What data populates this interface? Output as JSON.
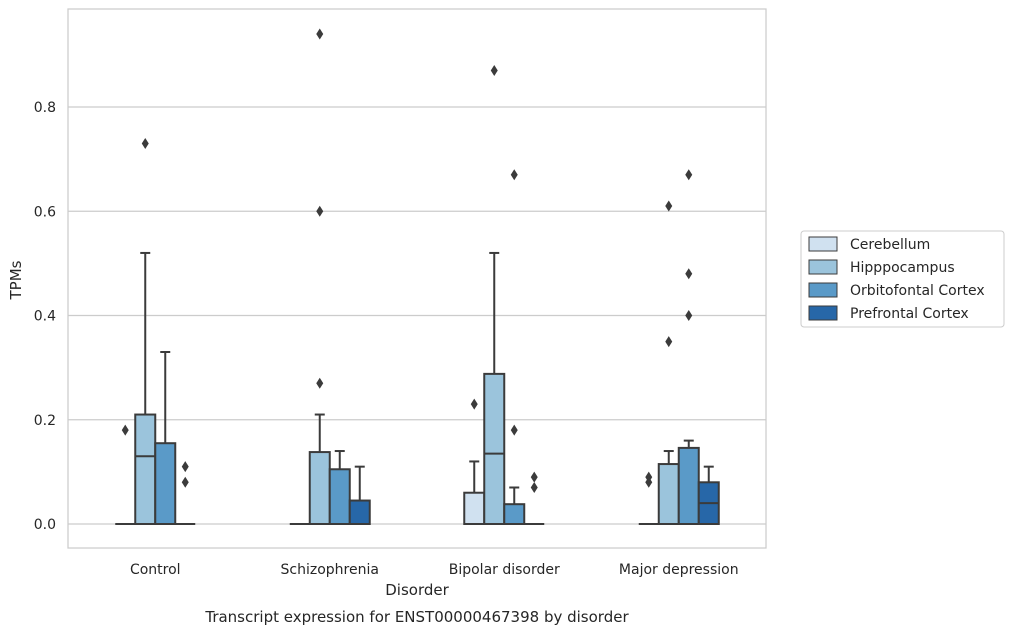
{
  "chart_data": {
    "type": "box",
    "title": "Transcript expression for ENST00000467398 by disorder",
    "xlabel": "Disorder",
    "ylabel": "TPMs",
    "ylim": [
      -0.045,
      0.99
    ],
    "yticks": [
      "0.0",
      "0.2",
      "0.4",
      "0.6",
      "0.8"
    ],
    "grid": true,
    "legend_position": "right",
    "categories": [
      "Control",
      "Schizophrenia",
      "Bipolar disorder",
      "Major depression"
    ],
    "series": [
      {
        "name": "Cerebellum",
        "color": "#d0e1f0",
        "boxes": [
          {
            "q1": 0.0,
            "median": 0.0,
            "q3": 0.0,
            "whisker_low": 0.0,
            "whisker_high": 0.0,
            "outliers": [
              0.18
            ]
          },
          {
            "q1": 0.0,
            "median": 0.0,
            "q3": 0.0,
            "whisker_low": 0.0,
            "whisker_high": 0.0,
            "outliers": []
          },
          {
            "q1": 0.0,
            "median": 0.0,
            "q3": 0.06,
            "whisker_low": 0.0,
            "whisker_high": 0.12,
            "outliers": [
              0.23
            ]
          },
          {
            "q1": 0.0,
            "median": 0.0,
            "q3": 0.0,
            "whisker_low": 0.0,
            "whisker_high": 0.0,
            "outliers": [
              0.08,
              0.09
            ]
          }
        ]
      },
      {
        "name": "Hipppocampus",
        "color": "#9bc4dc",
        "boxes": [
          {
            "q1": 0.0,
            "median": 0.13,
            "q3": 0.21,
            "whisker_low": 0.0,
            "whisker_high": 0.52,
            "outliers": [
              0.73
            ]
          },
          {
            "q1": 0.0,
            "median": 0.0,
            "q3": 0.138,
            "whisker_low": 0.0,
            "whisker_high": 0.21,
            "outliers": [
              0.27,
              0.6,
              0.94
            ]
          },
          {
            "q1": 0.0,
            "median": 0.135,
            "q3": 0.288,
            "whisker_low": 0.0,
            "whisker_high": 0.52,
            "outliers": [
              0.87
            ]
          },
          {
            "q1": 0.0,
            "median": 0.0,
            "q3": 0.115,
            "whisker_low": 0.0,
            "whisker_high": 0.14,
            "outliers": [
              0.35,
              0.61
            ]
          }
        ]
      },
      {
        "name": "Orbitofontal Cortex",
        "color": "#5a9ac8",
        "boxes": [
          {
            "q1": 0.0,
            "median": 0.0,
            "q3": 0.155,
            "whisker_low": 0.0,
            "whisker_high": 0.33,
            "outliers": []
          },
          {
            "q1": 0.0,
            "median": 0.0,
            "q3": 0.105,
            "whisker_low": 0.0,
            "whisker_high": 0.14,
            "outliers": []
          },
          {
            "q1": 0.0,
            "median": 0.0,
            "q3": 0.038,
            "whisker_low": 0.0,
            "whisker_high": 0.07,
            "outliers": [
              0.18,
              0.67
            ]
          },
          {
            "q1": 0.0,
            "median": 0.0,
            "q3": 0.146,
            "whisker_low": 0.0,
            "whisker_high": 0.16,
            "outliers": [
              0.4,
              0.48,
              0.67
            ]
          }
        ]
      },
      {
        "name": "Prefrontal Cortex",
        "color": "#2767a8",
        "boxes": [
          {
            "q1": 0.0,
            "median": 0.0,
            "q3": 0.0,
            "whisker_low": 0.0,
            "whisker_high": 0.0,
            "outliers": [
              0.08,
              0.11
            ]
          },
          {
            "q1": 0.0,
            "median": 0.0,
            "q3": 0.045,
            "whisker_low": 0.0,
            "whisker_high": 0.11,
            "outliers": []
          },
          {
            "q1": 0.0,
            "median": 0.0,
            "q3": 0.0,
            "whisker_low": 0.0,
            "whisker_high": 0.0,
            "outliers": [
              0.07,
              0.09
            ]
          },
          {
            "q1": 0.0,
            "median": 0.04,
            "q3": 0.08,
            "whisker_low": 0.0,
            "whisker_high": 0.11,
            "outliers": []
          }
        ]
      }
    ]
  }
}
